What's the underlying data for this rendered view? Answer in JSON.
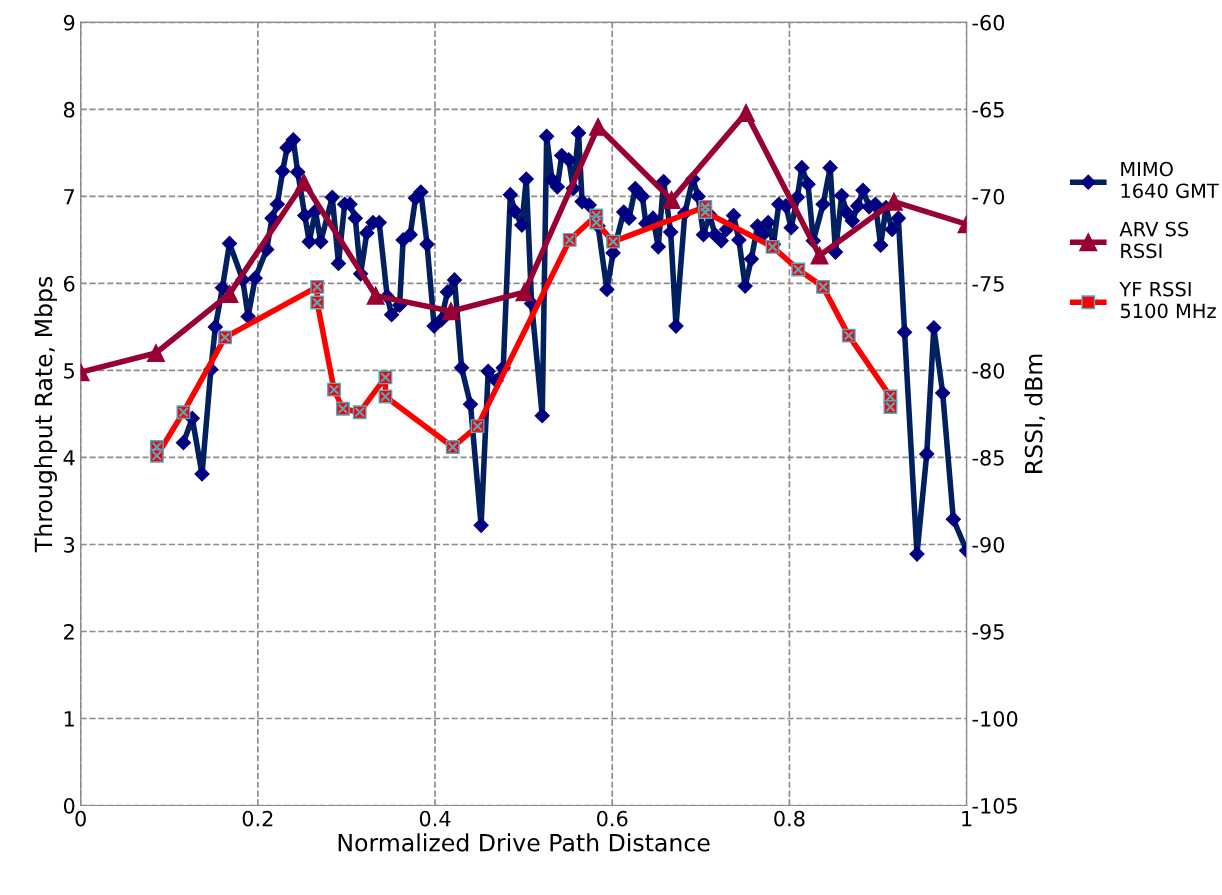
{
  "chart_data": {
    "type": "line",
    "xlabel": "Normalized Drive Path Distance",
    "ylabel": "Throughput Rate, Mbps",
    "y2label": "RSSI, dBm",
    "xlim": [
      0,
      1
    ],
    "xticks": [
      0,
      0.2,
      0.4,
      0.6,
      0.8,
      1
    ],
    "ylim": [
      0,
      9
    ],
    "yticks": [
      0,
      1,
      2,
      3,
      4,
      5,
      6,
      7,
      8,
      9
    ],
    "y2lim": [
      -105,
      -60
    ],
    "y2ticks": [
      -105,
      -100,
      -95,
      -90,
      -85,
      -80,
      -75,
      -70,
      -65,
      -60
    ],
    "grid": true,
    "legend": "right",
    "line_style": "solid",
    "series": [
      {
        "name": "MIMO\n1640 GMT",
        "color": "#002060",
        "marker": "diamond",
        "axis": "y",
        "x": [
          0.116,
          0.126,
          0.137,
          0.147,
          0.152,
          0.16,
          0.168,
          0.183,
          0.189,
          0.197,
          0.21,
          0.216,
          0.222,
          0.228,
          0.233,
          0.24,
          0.245,
          0.253,
          0.258,
          0.265,
          0.271,
          0.284,
          0.291,
          0.298,
          0.304,
          0.31,
          0.316,
          0.323,
          0.33,
          0.337,
          0.346,
          0.351,
          0.36,
          0.364,
          0.372,
          0.378,
          0.384,
          0.391,
          0.399,
          0.407,
          0.414,
          0.422,
          0.43,
          0.44,
          0.452,
          0.46,
          0.469,
          0.477,
          0.485,
          0.49,
          0.498,
          0.503,
          0.509,
          0.521,
          0.526,
          0.532,
          0.538,
          0.543,
          0.551,
          0.556,
          0.562,
          0.566,
          0.574,
          0.584,
          0.594,
          0.601,
          0.613,
          0.619,
          0.626,
          0.634,
          0.638,
          0.646,
          0.652,
          0.658,
          0.666,
          0.672,
          0.682,
          0.691,
          0.697,
          0.703,
          0.71,
          0.716,
          0.723,
          0.729,
          0.737,
          0.743,
          0.75,
          0.757,
          0.764,
          0.77,
          0.776,
          0.782,
          0.788,
          0.796,
          0.802,
          0.809,
          0.814,
          0.821,
          0.827,
          0.838,
          0.846,
          0.852,
          0.859,
          0.865,
          0.871,
          0.877,
          0.883,
          0.89,
          0.897,
          0.903,
          0.909,
          0.916,
          0.923,
          0.93,
          0.944,
          0.955,
          0.963,
          0.973,
          0.985,
          1.0
        ],
        "values": [
          4.17,
          4.45,
          3.81,
          5.01,
          5.5,
          5.95,
          6.46,
          6.04,
          5.62,
          6.06,
          6.39,
          6.75,
          6.91,
          7.29,
          7.56,
          7.65,
          7.28,
          6.78,
          6.48,
          6.83,
          6.48,
          6.99,
          6.23,
          6.91,
          6.91,
          6.75,
          6.11,
          6.58,
          6.7,
          6.7,
          5.85,
          5.64,
          5.75,
          6.5,
          6.56,
          6.98,
          7.05,
          6.45,
          5.51,
          5.58,
          5.9,
          6.04,
          5.03,
          4.61,
          3.22,
          4.99,
          4.88,
          5.03,
          7.02,
          6.83,
          6.67,
          7.2,
          5.77,
          4.48,
          7.69,
          7.19,
          7.11,
          7.47,
          7.42,
          7.09,
          7.73,
          6.94,
          6.9,
          6.66,
          5.93,
          6.35,
          6.82,
          6.75,
          7.09,
          7.0,
          6.69,
          6.75,
          6.42,
          7.17,
          6.59,
          5.51,
          6.81,
          7.2,
          7.0,
          6.56,
          6.79,
          6.56,
          6.49,
          6.62,
          6.78,
          6.5,
          5.97,
          6.28,
          6.66,
          6.56,
          6.7,
          6.45,
          6.91,
          6.89,
          6.64,
          6.99,
          7.33,
          7.14,
          6.49,
          6.91,
          7.33,
          6.36,
          7.01,
          6.81,
          6.72,
          6.89,
          7.07,
          6.88,
          6.91,
          6.44,
          6.87,
          6.62,
          6.75,
          5.44,
          2.89,
          4.04,
          5.49,
          4.74,
          3.29,
          2.93
        ]
      },
      {
        "name": "ARV SS\nRSSI",
        "color": "#990033",
        "marker": "triangle",
        "axis": "y2",
        "x": [
          0,
          0.085,
          0.168,
          0.252,
          0.333,
          0.418,
          0.501,
          0.584,
          0.667,
          0.751,
          0.834,
          0.918,
          1.0
        ],
        "values": [
          -80.1,
          -79.0,
          -75.6,
          -69.2,
          -75.7,
          -76.6,
          -75.5,
          -66.0,
          -70.2,
          -65.2,
          -73.4,
          -70.3,
          -71.6
        ]
      },
      {
        "name": "YF RSSI\n5100 MHz",
        "color": "#ff0000",
        "marker": "square",
        "axis": "y2",
        "x": [
          0.086,
          0.086,
          0.116,
          0.163,
          0.267,
          0.267,
          0.286,
          0.296,
          0.315,
          0.344,
          0.344,
          0.42,
          0.448,
          0.552,
          0.582,
          0.582,
          0.601,
          0.705,
          0.705,
          0.781,
          0.81,
          0.838,
          0.867,
          0.914,
          0.914
        ],
        "values": [
          -84.4,
          -84.9,
          -82.4,
          -78.1,
          -75.2,
          -76.1,
          -81.1,
          -82.2,
          -82.4,
          -80.4,
          -81.5,
          -84.4,
          -83.2,
          -72.5,
          -71.1,
          -71.5,
          -72.6,
          -70.6,
          -70.9,
          -72.9,
          -74.2,
          -75.2,
          -78.0,
          -81.5,
          -82.1
        ]
      }
    ]
  }
}
